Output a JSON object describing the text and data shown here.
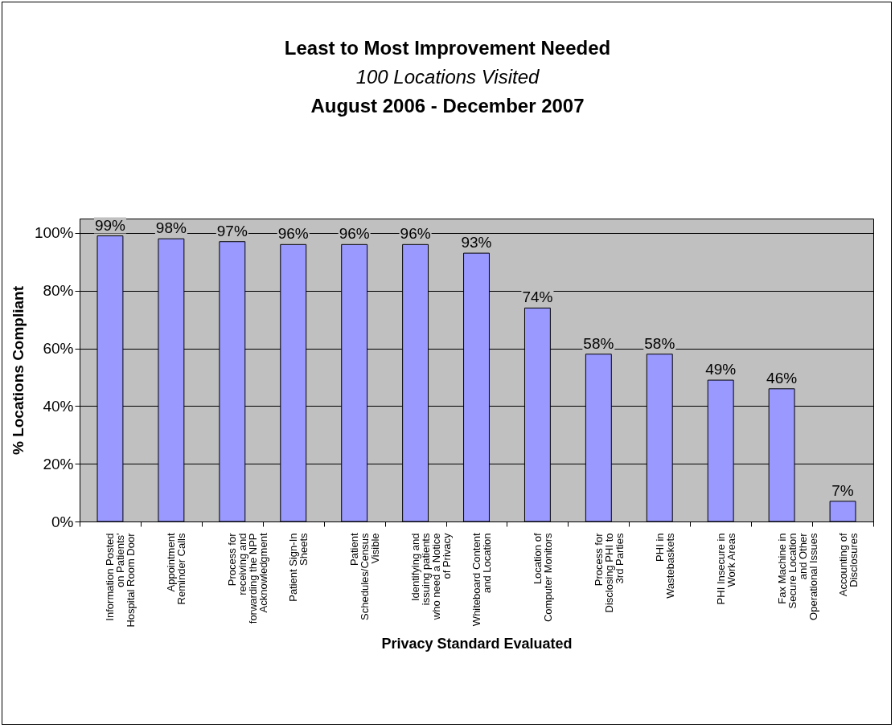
{
  "chart_data": {
    "type": "bar",
    "title": "Least to Most Improvement Needed",
    "subtitle": "100 Locations Visited",
    "annotations": [
      "August 2006 - December 2007"
    ],
    "xlabel": "Privacy Standard Evaluated",
    "ylabel": "% Locations Compliant",
    "categories": [
      "Information Posted on Patients' Hospital Room Door",
      "Appointment Reminder Calls",
      "Process for receiving and forwarding the NPP Acknowledgment",
      "Patient Sign-In Sheets",
      "Patient Schedules/Census Visible",
      "Identifying and issuing patients who need a Notice of Privacy",
      "Whiteboard Content and Location",
      "Location of Computer Monitors",
      "Process for Disclosing PHI to 3rd Parties",
      "PHI in Wastebaskets",
      "PHI Insecure in Work Areas",
      "Fax Machine in Secure Location and Other Operational Issues",
      "Accounting of Disclosures"
    ],
    "values": [
      99,
      98,
      97,
      96,
      96,
      96,
      93,
      74,
      58,
      58,
      49,
      46,
      7
    ],
    "value_labels": [
      "99%",
      "98%",
      "97%",
      "96%",
      "96%",
      "96%",
      "93%",
      "74%",
      "58%",
      "58%",
      "49%",
      "46%",
      "7%"
    ],
    "color": "#9999ff",
    "ylim": [
      0,
      105
    ],
    "yticks": [
      {
        "value": 0,
        "label": "0%"
      },
      {
        "value": 20,
        "label": "20%"
      },
      {
        "value": 40,
        "label": "40%"
      },
      {
        "value": 60,
        "label": "60%"
      },
      {
        "value": 80,
        "label": "80%"
      },
      {
        "value": 100,
        "label": "100%"
      }
    ],
    "grid": "y"
  }
}
